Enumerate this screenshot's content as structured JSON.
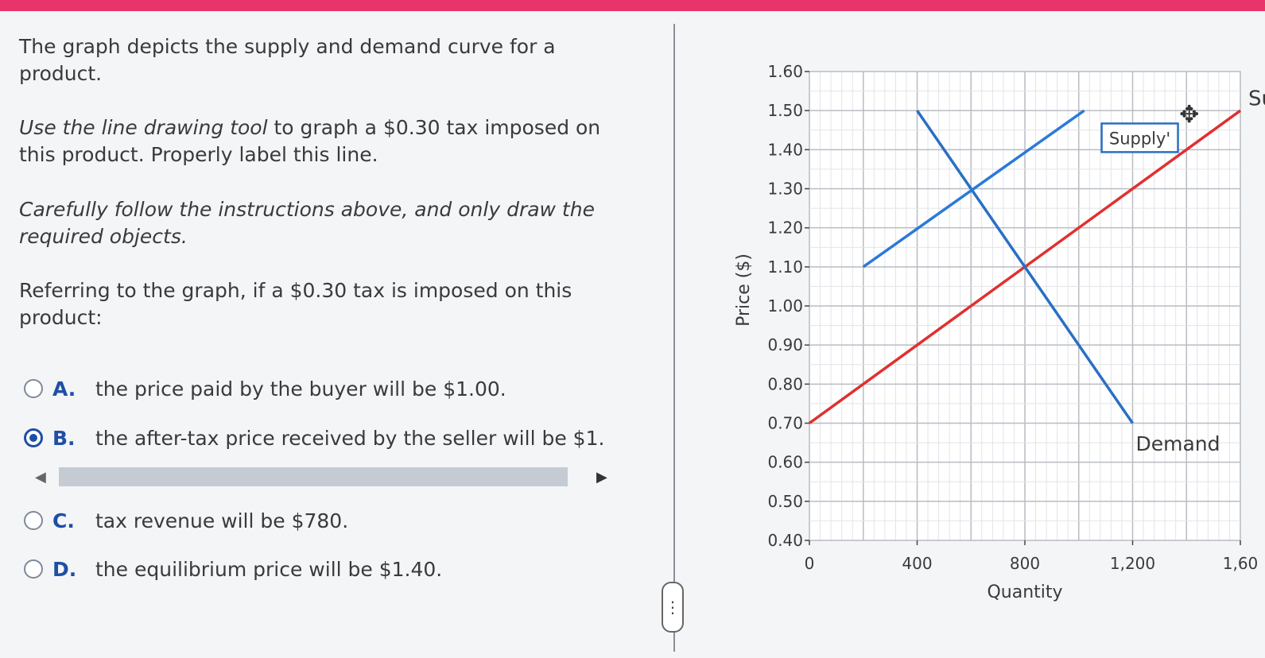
{
  "question": {
    "p1": "The graph depicts the supply and demand curve for a product.",
    "p2_italic": "Use the line drawing tool",
    "p2_rest": " to graph a $0.30 tax imposed on this product. Properly label this line.",
    "p3": "Carefully follow the instructions above, and only draw the required objects.",
    "p4": "Referring to the graph, if a $0.30 tax is imposed on this product:"
  },
  "options": [
    {
      "letter": "A.",
      "text": "the price paid by the buyer will be $1.00.",
      "selected": false
    },
    {
      "letter": "B.",
      "text": "the after-tax price received by the seller will be $1.",
      "selected": true
    },
    {
      "letter": "C.",
      "text": "tax revenue will be $780.",
      "selected": false
    },
    {
      "letter": "D.",
      "text": "the equilibrium price will be $1.40.",
      "selected": false
    }
  ],
  "scrollbar": {
    "left_arrow": "◀",
    "right_arrow": "▶"
  },
  "divider_handle": "⋮",
  "chart_data": {
    "type": "line",
    "xlabel": "Quantity",
    "ylabel": "Price ($)",
    "xlim": [
      0,
      1600
    ],
    "ylim": [
      0.4,
      1.6
    ],
    "x_ticks": [
      "0",
      "400",
      "800",
      "1,200",
      "1,60"
    ],
    "y_ticks": [
      "0.40",
      "0.50",
      "0.60",
      "0.70",
      "0.80",
      "0.90",
      "1.00",
      "1.10",
      "1.20",
      "1.30",
      "1.40",
      "1.50",
      "1.60"
    ],
    "grid": true,
    "series": [
      {
        "name": "Sup",
        "color": "#e03030",
        "points": [
          [
            0,
            0.7
          ],
          [
            1600,
            1.5
          ]
        ]
      },
      {
        "name": "Demand",
        "color": "#2a6fc4",
        "points": [
          [
            400,
            1.5
          ],
          [
            1200,
            0.7
          ]
        ]
      },
      {
        "name": "Supply'",
        "color": "#2a7ad8",
        "points": [
          [
            200,
            1.1
          ],
          [
            1020,
            1.5
          ]
        ]
      }
    ],
    "move_icon": "✥"
  }
}
